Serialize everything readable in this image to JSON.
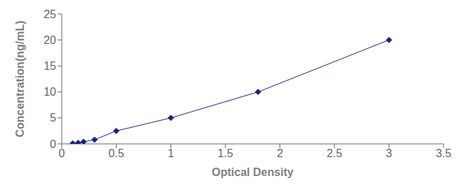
{
  "chart_data": {
    "type": "line",
    "x": [
      0.1,
      0.15,
      0.2,
      0.3,
      0.5,
      1.0,
      1.8,
      3.0
    ],
    "values": [
      0.1,
      0.2,
      0.4,
      0.8,
      2.5,
      5.0,
      10.0,
      20.0
    ],
    "color": "#1A237E",
    "marker": "diamond",
    "line_style": "solid",
    "xlabel": "Optical Density",
    "ylabel": "Concentration(ng/mL)",
    "xlim": [
      0,
      3.5
    ],
    "ylim": [
      0,
      25
    ],
    "xticks": [
      0,
      0.5,
      1,
      1.5,
      2,
      2.5,
      3,
      3.5
    ],
    "yticks": [
      0,
      5,
      10,
      15,
      20,
      25
    ],
    "grid": false
  }
}
